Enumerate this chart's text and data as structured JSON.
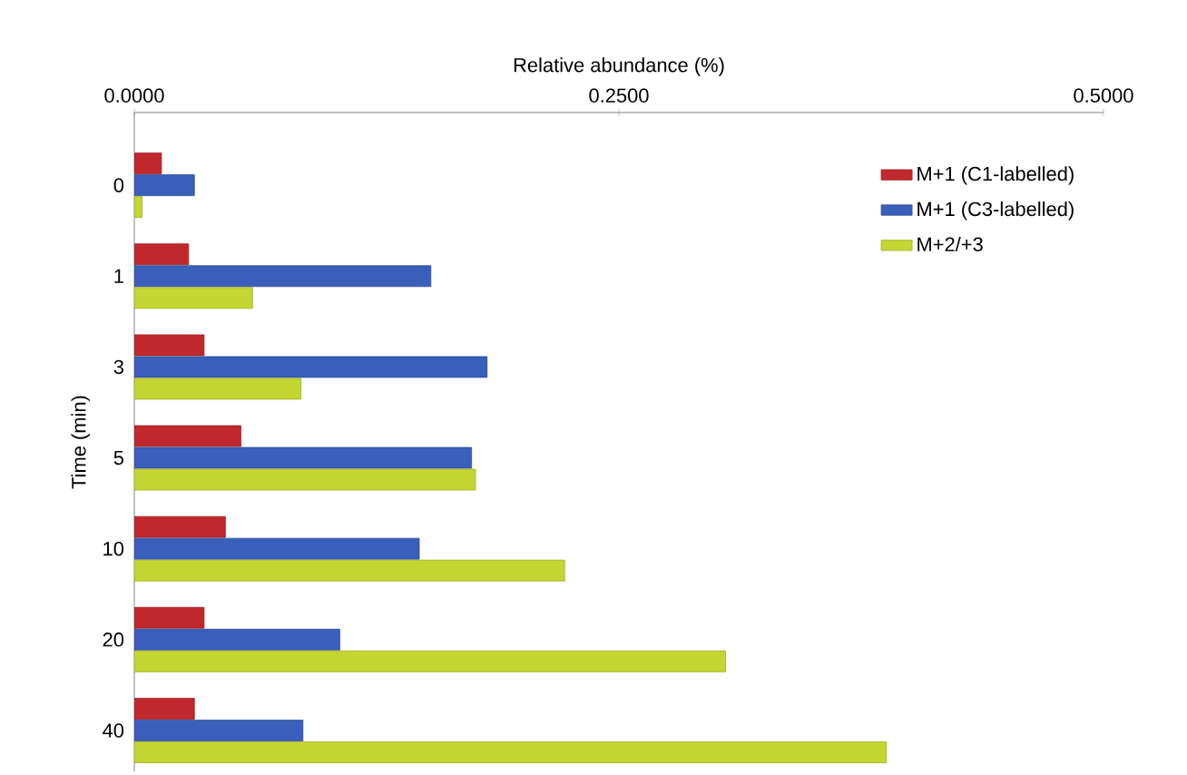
{
  "chart_data": {
    "type": "bar",
    "orientation": "horizontal",
    "xlabel": "Relative abundance (%)",
    "ylabel": "Time (min)",
    "categories": [
      "0",
      "1",
      "3",
      "5",
      "10",
      "20",
      "40"
    ],
    "series": [
      {
        "name": "M+1 (C1-labelled)",
        "color": "#c0282d",
        "values": [
          0.014,
          0.028,
          0.036,
          0.055,
          0.047,
          0.036,
          0.031
        ]
      },
      {
        "name": "M+1 (C3-labelled)",
        "color": "#3a5fba",
        "values": [
          0.031,
          0.153,
          0.182,
          0.174,
          0.147,
          0.106,
          0.087
        ]
      },
      {
        "name": "M+2/+3",
        "color": "#c4d631",
        "values": [
          0.004,
          0.061,
          0.086,
          0.176,
          0.222,
          0.305,
          0.388
        ]
      }
    ],
    "xlim": [
      0,
      0.5
    ],
    "xticks": [
      {
        "value": 0,
        "label": "0.0000"
      },
      {
        "value": 0.25,
        "label": "0.2500"
      },
      {
        "value": 0.5,
        "label": "0.5000"
      }
    ],
    "grid": false,
    "legend": "top right"
  }
}
